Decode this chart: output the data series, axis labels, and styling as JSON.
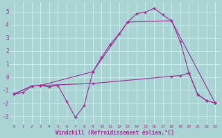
{
  "background_color": "#aad4d4",
  "grid_color": "#cceeee",
  "line_color": "#993399",
  "xlabel": "Windchill (Refroidissement éolien,°C)",
  "xlim": [
    -0.5,
    23.5
  ],
  "ylim": [
    -3.6,
    5.7
  ],
  "yticks": [
    -3,
    -2,
    -1,
    0,
    1,
    2,
    3,
    4,
    5
  ],
  "xticks": [
    0,
    1,
    2,
    3,
    4,
    5,
    6,
    7,
    8,
    9,
    10,
    11,
    12,
    13,
    14,
    15,
    16,
    17,
    18,
    19,
    20,
    21,
    22,
    23
  ],
  "series1": [
    [
      0,
      -1.3
    ],
    [
      1,
      -1.2
    ],
    [
      2,
      -0.7
    ],
    [
      3,
      -0.65
    ],
    [
      4,
      -0.75
    ],
    [
      5,
      -0.65
    ],
    [
      6,
      -1.85
    ],
    [
      7,
      -3.1
    ],
    [
      8,
      -2.2
    ],
    [
      9,
      0.4
    ],
    [
      10,
      1.5
    ],
    [
      11,
      2.5
    ],
    [
      12,
      3.3
    ],
    [
      13,
      4.2
    ],
    [
      14,
      4.85
    ],
    [
      15,
      4.95
    ],
    [
      16,
      5.25
    ],
    [
      17,
      4.75
    ],
    [
      18,
      4.3
    ],
    [
      19,
      2.7
    ],
    [
      20,
      0.3
    ],
    [
      21,
      -1.35
    ],
    [
      22,
      -1.8
    ],
    [
      23,
      -2.0
    ]
  ],
  "series2": [
    [
      0,
      -1.3
    ],
    [
      2,
      -0.7
    ],
    [
      3,
      -0.65
    ],
    [
      9,
      0.4
    ],
    [
      13,
      4.2
    ],
    [
      18,
      4.3
    ],
    [
      23,
      -2.0
    ]
  ],
  "series3": [
    [
      0,
      -1.3
    ],
    [
      2,
      -0.7
    ],
    [
      3,
      -0.65
    ],
    [
      9,
      -0.5
    ],
    [
      18,
      0.05
    ],
    [
      19,
      0.1
    ],
    [
      20,
      0.3
    ],
    [
      21,
      -1.35
    ],
    [
      22,
      -1.8
    ],
    [
      23,
      -2.0
    ]
  ]
}
